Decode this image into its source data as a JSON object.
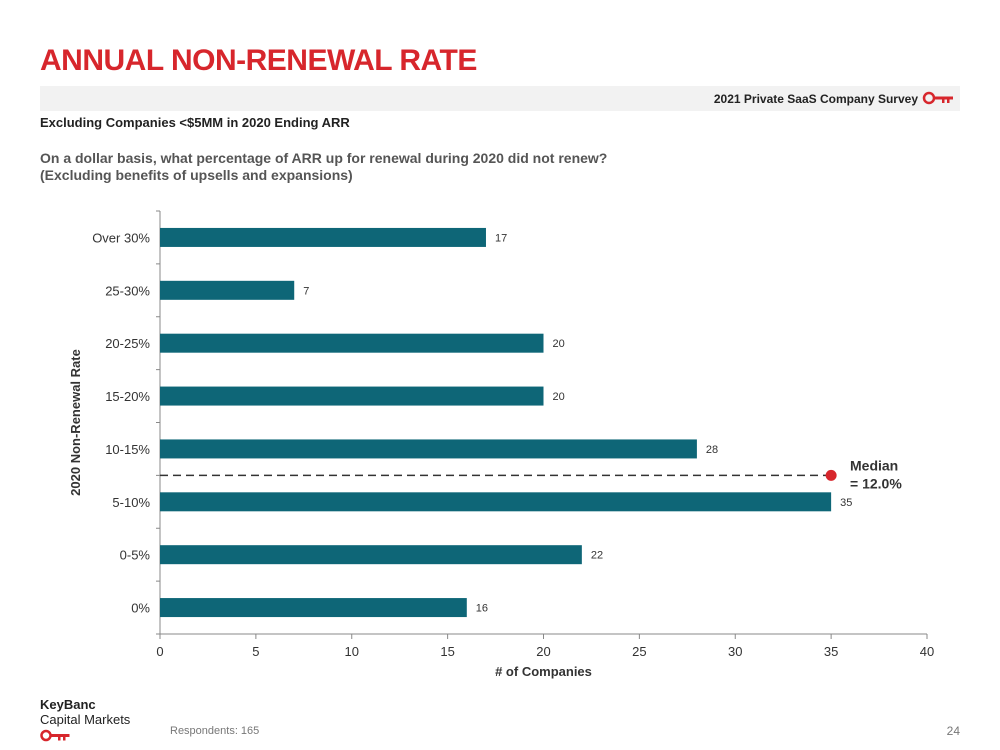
{
  "header": {
    "title": "ANNUAL NON-RENEWAL RATE",
    "survey_label": "2021 Private SaaS Company Survey",
    "subtitle": "Excluding Companies <$5MM in 2020 Ending ARR",
    "question": "On a dollar basis, what percentage of ARR up for renewal during 2020 did not renew? (Excluding benefits of upsells and expansions)"
  },
  "chart_data": {
    "type": "bar",
    "orientation": "horizontal",
    "categories": [
      "Over 30%",
      "25-30%",
      "20-25%",
      "15-20%",
      "10-15%",
      "5-10%",
      "0-5%",
      "0%"
    ],
    "values": [
      17,
      7,
      20,
      20,
      28,
      35,
      22,
      16
    ],
    "data_labels": [
      "17",
      "7",
      "20",
      "20",
      "28",
      "35",
      "22",
      "16"
    ],
    "xlabel": "# of Companies",
    "ylabel": "2020 Non-Renewal Rate",
    "xlim": [
      0,
      40
    ],
    "xticks": [
      "0",
      "5",
      "10",
      "15",
      "20",
      "25",
      "30",
      "35",
      "40"
    ],
    "grid": false,
    "bar_color": "#0e6677",
    "median": {
      "label_line1": "Median",
      "label_line2": "= 12.0%",
      "between_categories": [
        "10-15%",
        "5-10%"
      ],
      "marker_x": 35,
      "color": "#d7262c"
    }
  },
  "footer": {
    "brand_line1": "KeyBanc",
    "brand_line2": "Capital Markets",
    "respondents": "Respondents: 165",
    "page_number": "24"
  },
  "colors": {
    "accent": "#d7262c",
    "bar": "#0e6677"
  },
  "icons": {
    "survey": "key-icon",
    "brand": "key-icon"
  }
}
